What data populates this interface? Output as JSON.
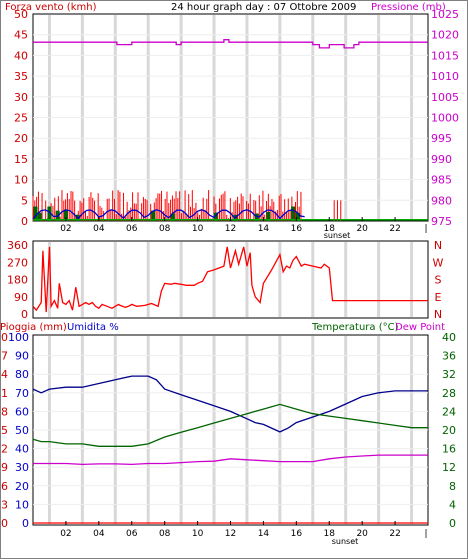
{
  "chart_data": [
    {
      "type": "line",
      "panel": "wind-pressure",
      "title": "24 hour graph day : 07 Ottobre 2009",
      "left_axis_title": "Forza vento (kmh)",
      "right_axis_title": "Pressione (mb)",
      "left_ticks": [
        "0",
        "5",
        "10",
        "15",
        "20",
        "25",
        "30",
        "35",
        "40",
        "45",
        "50"
      ],
      "right_ticks": [
        "975",
        "980",
        "985",
        "990",
        "995",
        "1000",
        "1005",
        "1010",
        "1015",
        "1020",
        "1025"
      ],
      "x_ticks": [
        "02",
        "04",
        "06",
        "08",
        "10",
        "12",
        "14",
        "16",
        "18",
        "20",
        "22"
      ],
      "x_end_tick": "|",
      "sunset_label": "sunset",
      "ylim_left": [
        0,
        50
      ],
      "ylim_right": [
        975,
        1025
      ],
      "colors": {
        "wind": "#ff0000",
        "gust": "#006400",
        "avg": "#0000cc",
        "pressure": "#cc00cc",
        "text_left": "#cc0000",
        "text_right": "#cc00cc"
      },
      "series": [
        {
          "name": "Pressione",
          "axis": "right",
          "color": "#cc00cc",
          "x": [
            0,
            5.1,
            5.1,
            6.0,
            6.0,
            8.7,
            8.7,
            9.0,
            9.0,
            11.6,
            11.6,
            11.9,
            11.9,
            17.0,
            17.0,
            17.4,
            17.4,
            18.0,
            18.0,
            18.9,
            18.9,
            19.5,
            19.5,
            19.8,
            19.8,
            24
          ],
          "y": [
            1018.2,
            1018.2,
            1017.6,
            1017.6,
            1018.2,
            1018.2,
            1017.6,
            1017.6,
            1018.2,
            1018.2,
            1018.8,
            1018.8,
            1018.2,
            1018.2,
            1017.6,
            1017.6,
            1016.8,
            1016.8,
            1017.6,
            1017.6,
            1016.8,
            1016.8,
            1017.6,
            1017.6,
            1018.2,
            1018.2
          ]
        }
      ],
      "wind_bars": {
        "x_from": 0,
        "x_to": 16.3,
        "step": 0.11,
        "max": 7.5
      },
      "gust_bars": [
        {
          "x": 0.15,
          "v": 3.5
        },
        {
          "x": 0.4,
          "v": 2
        },
        {
          "x": 1.0,
          "v": 3.5
        },
        {
          "x": 1.5,
          "v": 2.5
        },
        {
          "x": 2.0,
          "v": 2.8
        },
        {
          "x": 2.7,
          "v": 1.5
        },
        {
          "x": 7.3,
          "v": 2.5
        },
        {
          "x": 8.5,
          "v": 1.8
        },
        {
          "x": 11.1,
          "v": 2
        },
        {
          "x": 12.3,
          "v": 1.5
        },
        {
          "x": 13.6,
          "v": 1.8
        },
        {
          "x": 14.3,
          "v": 2.2
        },
        {
          "x": 15.8,
          "v": 3.5
        },
        {
          "x": 16.1,
          "v": 2
        }
      ]
    },
    {
      "type": "line",
      "panel": "wind-direction",
      "left_ticks": [
        "0",
        "90",
        "180",
        "270",
        "360"
      ],
      "right_labels": [
        "N",
        "E",
        "S",
        "W",
        "N"
      ],
      "ylim": [
        0,
        360
      ],
      "color": "#ff0000",
      "x": [
        0,
        0.2,
        0.5,
        0.6,
        0.8,
        1.0,
        1.1,
        1.3,
        1.5,
        1.6,
        1.8,
        2.0,
        2.2,
        2.4,
        2.6,
        2.8,
        3.0,
        3.2,
        3.4,
        3.6,
        3.8,
        4.0,
        4.2,
        4.5,
        4.8,
        5.0,
        5.2,
        5.3,
        5.6,
        5.8,
        6.0,
        6.3,
        6.8,
        7.2,
        7.6,
        7.8,
        8.0,
        8.4,
        8.6,
        9.0,
        9.3,
        9.8,
        10.0,
        10.3,
        10.6,
        11.0,
        11.3,
        11.6,
        11.8,
        12.0,
        12.3,
        12.5,
        12.8,
        13.0,
        13.2,
        13.3,
        13.5,
        13.6,
        13.8,
        14.0,
        14.5,
        15.0,
        15.2,
        15.4,
        15.6,
        15.8,
        16.0,
        16.3,
        16.5,
        17.0,
        17.5,
        17.7,
        18.0,
        18.2,
        20.0,
        21.0,
        22.0,
        24.0
      ],
      "y": [
        40,
        20,
        60,
        330,
        10,
        350,
        40,
        70,
        30,
        160,
        60,
        50,
        70,
        20,
        140,
        40,
        50,
        60,
        50,
        60,
        40,
        30,
        50,
        40,
        30,
        40,
        50,
        45,
        35,
        40,
        50,
        40,
        45,
        55,
        40,
        120,
        160,
        155,
        160,
        155,
        150,
        150,
        160,
        170,
        220,
        230,
        240,
        250,
        350,
        240,
        330,
        260,
        350,
        250,
        320,
        150,
        90,
        80,
        60,
        160,
        230,
        310,
        220,
        250,
        240,
        280,
        300,
        250,
        260,
        250,
        240,
        260,
        240,
        70,
        70,
        70,
        70,
        70
      ]
    },
    {
      "type": "line",
      "panel": "rain-humidity-temp",
      "rain_axis_title": "Pioggia (mm)",
      "humidity_axis_title": "Umidita %",
      "temp_axis_title": "Temperatura (°C)",
      "dew_axis_title": "Dew Point",
      "rain_ticks": [
        "0",
        "3",
        "6",
        "9",
        "12",
        "15",
        "18",
        "21",
        "24",
        "27",
        "30"
      ],
      "humidity_ticks": [
        "0",
        "10",
        "20",
        "30",
        "40",
        "50",
        "60",
        "70",
        "80",
        "90",
        "100"
      ],
      "temp_ticks": [
        "0",
        "4",
        "8",
        "12",
        "16",
        "20",
        "24",
        "28",
        "32",
        "36",
        "40"
      ],
      "x_ticks": [
        "02",
        "04",
        "06",
        "08",
        "10",
        "12",
        "14",
        "16",
        "18",
        "20",
        "22"
      ],
      "x_end_tick": "|",
      "sunset_label": "sunset",
      "ylim_humidity": [
        0,
        100
      ],
      "ylim_temp": [
        0,
        40
      ],
      "ylim_rain": [
        0,
        30
      ],
      "colors": {
        "humidity": "#00008b",
        "temperature": "#006400",
        "dewpoint": "#cc00cc",
        "rain": "#ff0000",
        "text_rain": "#cc0000",
        "text_humidity": "#0000cc",
        "text_temp": "#006400",
        "text_dew": "#cc00cc"
      },
      "series": [
        {
          "name": "Umidita %",
          "axis": "humidity",
          "color": "#00008b",
          "x": [
            0,
            0.5,
            1.0,
            2.0,
            3.0,
            4.0,
            5.0,
            6.0,
            7.0,
            7.5,
            8.0,
            9.0,
            10.0,
            11.0,
            12.0,
            13.0,
            13.5,
            14.0,
            14.5,
            15.0,
            15.5,
            16.0,
            17.0,
            18.0,
            19.0,
            20.0,
            21.0,
            22.0,
            23.0,
            24.0
          ],
          "y": [
            72,
            70,
            72,
            73,
            73,
            75,
            77,
            79,
            79,
            77,
            72,
            69,
            66,
            63,
            60,
            56,
            54,
            53,
            51,
            49,
            51,
            54,
            57,
            60,
            64,
            68,
            70,
            71,
            71,
            71
          ]
        },
        {
          "name": "Temperatura (°C)",
          "axis": "temp",
          "color": "#006400",
          "x": [
            0,
            0.5,
            1.0,
            2.0,
            3.0,
            4.0,
            5.0,
            6.0,
            7.0,
            8.0,
            9.0,
            10.0,
            11.0,
            12.0,
            13.0,
            14.0,
            15.0,
            16.0,
            17.0,
            18.0,
            19.0,
            20.0,
            21.0,
            22.0,
            23.0,
            24.0
          ],
          "y": [
            18,
            17.5,
            17.5,
            17,
            17,
            16.5,
            16.5,
            16.5,
            17,
            18.5,
            19.5,
            20.5,
            21.5,
            22.5,
            23.5,
            24.5,
            25.5,
            24.5,
            23.5,
            23,
            22.5,
            22,
            21.5,
            21,
            20.5,
            20.5
          ]
        },
        {
          "name": "Dew Point",
          "axis": "temp",
          "color": "#cc00cc",
          "x": [
            0,
            1.0,
            2.0,
            3.0,
            4.0,
            5.0,
            6.0,
            7.0,
            8.0,
            9.0,
            10.0,
            11.0,
            12.0,
            13.0,
            14.0,
            15.0,
            16.0,
            17.0,
            18.0,
            19.0,
            20.0,
            21.0,
            22.0,
            23.0,
            24.0
          ],
          "y": [
            12.8,
            12.8,
            12.8,
            12.6,
            12.7,
            12.7,
            12.6,
            12.8,
            12.8,
            13.0,
            13.2,
            13.3,
            13.8,
            13.6,
            13.4,
            13.2,
            13.2,
            13.2,
            13.8,
            14.2,
            14.4,
            14.6,
            14.6,
            14.6,
            14.6
          ]
        },
        {
          "name": "Pioggia (mm)",
          "axis": "rain",
          "color": "#ff0000",
          "x": [
            0,
            24
          ],
          "y": [
            0,
            0
          ]
        }
      ]
    }
  ]
}
